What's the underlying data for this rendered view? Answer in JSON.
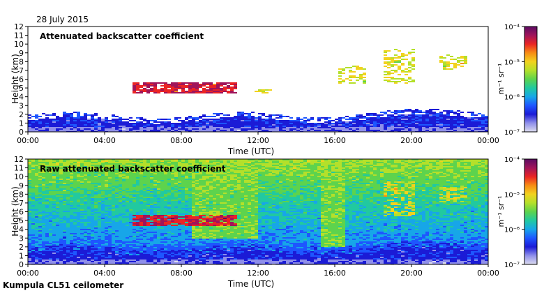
{
  "date_label": "28 July 2015",
  "footer_label": "Kumpula CL51 ceilometer",
  "colors": {
    "clear": "#ffffff",
    "colormap": [
      "#dcdcee",
      "#8f8fea",
      "#1b1bd6",
      "#1e56ff",
      "#17a6e8",
      "#21c9a0",
      "#5dd34d",
      "#b4e02a",
      "#f2d21e",
      "#f78c14",
      "#ea2424",
      "#a0145a",
      "#5b0b63"
    ]
  },
  "chart_data": [
    {
      "type": "heatmap",
      "title": "Attenuated backscatter coefficient",
      "xlabel": "Time (UTC)",
      "ylabel": "Height (km)",
      "x_ticks": [
        "00:00",
        "04:00",
        "08:00",
        "12:00",
        "16:00",
        "20:00",
        "00:00"
      ],
      "y_ticks": [
        "0",
        "1",
        "2",
        "3",
        "4",
        "5",
        "6",
        "7",
        "8",
        "9",
        "10",
        "11",
        "12"
      ],
      "xlim_hours": [
        0,
        24
      ],
      "ylim_km": [
        0,
        12
      ],
      "colorbar": {
        "label": "m⁻¹ sr⁻¹",
        "scale": "log",
        "ticks": [
          "10⁻⁷",
          "10⁻⁶",
          "10⁻⁵",
          "10⁻⁴"
        ]
      },
      "features": [
        {
          "t_start": 5.4,
          "t_end": 10.9,
          "h_bottom": 4.4,
          "h_top": 5.6,
          "level": "high"
        },
        {
          "t_start": 11.8,
          "t_end": 12.7,
          "h_bottom": 4.4,
          "h_top": 4.9,
          "level": "mid"
        },
        {
          "t_start": 16.2,
          "t_end": 17.6,
          "h_bottom": 5.5,
          "h_top": 7.5,
          "level": "mid"
        },
        {
          "t_start": 18.6,
          "t_end": 20.2,
          "h_bottom": 5.5,
          "h_top": 9.5,
          "level": "mid"
        },
        {
          "t_start": 21.4,
          "t_end": 22.9,
          "h_bottom": 7.0,
          "h_top": 8.8,
          "level": "mid"
        }
      ]
    },
    {
      "type": "heatmap",
      "title": "Raw attenuated backscatter coefficient",
      "xlabel": "Time (UTC)",
      "ylabel": "Height (km)",
      "x_ticks": [
        "00:00",
        "04:00",
        "08:00",
        "12:00",
        "16:00",
        "20:00",
        "00:00"
      ],
      "y_ticks": [
        "0",
        "1",
        "2",
        "3",
        "4",
        "5",
        "6",
        "7",
        "8",
        "9",
        "10",
        "11",
        "12"
      ],
      "xlim_hours": [
        0,
        24
      ],
      "ylim_km": [
        0,
        12
      ],
      "colorbar": {
        "label": "m⁻¹ sr⁻¹",
        "scale": "log",
        "ticks": [
          "10⁻⁷",
          "10⁻⁶",
          "10⁻⁵",
          "10⁻⁴"
        ]
      },
      "features": [
        {
          "t_start": 5.4,
          "t_end": 10.9,
          "h_bottom": 4.4,
          "h_top": 5.6,
          "level": "high"
        },
        {
          "t_start": 8.5,
          "t_end": 12.0,
          "h_bottom": 3.0,
          "h_top": 12.0,
          "level": "elevated"
        },
        {
          "t_start": 15.3,
          "t_end": 16.6,
          "h_bottom": 2.0,
          "h_top": 12.0,
          "level": "elevated"
        },
        {
          "t_start": 18.6,
          "t_end": 20.2,
          "h_bottom": 5.5,
          "h_top": 9.5,
          "level": "mid"
        },
        {
          "t_start": 21.4,
          "t_end": 22.9,
          "h_bottom": 7.0,
          "h_top": 8.8,
          "level": "mid"
        }
      ]
    }
  ]
}
